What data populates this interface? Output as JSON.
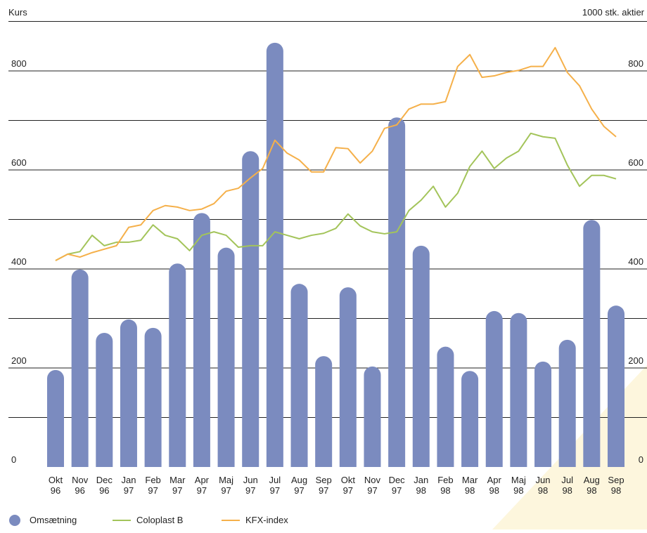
{
  "chart_data": {
    "type": "bar_line",
    "y_label": "Kurs",
    "y2_label": "1000 stk. aktier",
    "categories": [
      [
        "Okt",
        "96"
      ],
      [
        "Nov",
        "96"
      ],
      [
        "Dec",
        "96"
      ],
      [
        "Jan",
        "97"
      ],
      [
        "Feb",
        "97"
      ],
      [
        "Mar",
        "97"
      ],
      [
        "Apr",
        "97"
      ],
      [
        "Maj",
        "97"
      ],
      [
        "Jun",
        "97"
      ],
      [
        "Jul",
        "97"
      ],
      [
        "Aug",
        "97"
      ],
      [
        "Sep",
        "97"
      ],
      [
        "Okt",
        "97"
      ],
      [
        "Nov",
        "97"
      ],
      [
        "Dec",
        "97"
      ],
      [
        "Jan",
        "98"
      ],
      [
        "Feb",
        "98"
      ],
      [
        "Mar",
        "98"
      ],
      [
        "Apr",
        "98"
      ],
      [
        "Maj",
        "98"
      ],
      [
        "Jun",
        "98"
      ],
      [
        "Jul",
        "98"
      ],
      [
        "Aug",
        "98"
      ],
      [
        "Sep",
        "98"
      ]
    ],
    "ylim": [
      0,
      900
    ],
    "yticks": [
      0,
      200,
      400,
      600,
      800
    ],
    "y2lim": [
      0,
      900
    ],
    "y2ticks": [
      0,
      200,
      400,
      600,
      800
    ],
    "grid_lines": [
      100,
      200,
      300,
      400,
      500,
      600,
      700,
      800,
      900
    ],
    "bars": {
      "name": "Omsætning",
      "color": "#7b8bbf",
      "axis": "y2",
      "values": [
        196,
        399,
        271,
        298,
        281,
        411,
        513,
        443,
        638,
        857,
        370,
        224,
        363,
        203,
        706,
        447,
        243,
        194,
        315,
        311,
        213,
        257,
        499,
        326
      ]
    },
    "x": [
      0,
      0.5,
      1,
      1.5,
      2,
      2.5,
      3,
      3.5,
      4,
      4.5,
      5,
      5.5,
      6,
      6.5,
      7,
      7.5,
      8,
      8.5,
      9,
      9.5,
      10,
      10.5,
      11,
      11.5,
      12,
      12.5,
      13,
      13.5,
      14,
      14.5,
      15,
      15.5,
      16,
      16.5,
      17,
      17.5,
      18,
      18.5,
      19,
      19.5,
      20,
      20.5,
      21,
      21.5,
      22,
      22.5,
      23
    ],
    "series": [
      {
        "name": "Coloplast B",
        "color": "#a3c45a",
        "values": [
          417,
          430,
          435,
          468,
          447,
          454,
          454,
          458,
          489,
          468,
          461,
          437,
          468,
          475,
          468,
          444,
          447,
          447,
          475,
          468,
          461,
          468,
          472,
          482,
          511,
          487,
          475,
          471,
          475,
          518,
          539,
          567,
          525,
          553,
          607,
          638,
          603,
          624,
          638,
          674,
          667,
          664,
          610,
          567,
          589,
          589,
          582
        ]
      },
      {
        "name": "KFX-index",
        "color": "#f5b04a",
        "values": [
          417,
          430,
          424,
          433,
          440,
          447,
          484,
          489,
          518,
          528,
          525,
          518,
          521,
          532,
          557,
          563,
          584,
          603,
          660,
          634,
          620,
          596,
          596,
          645,
          643,
          614,
          638,
          684,
          691,
          723,
          733,
          733,
          738,
          809,
          833,
          787,
          790,
          797,
          801,
          809,
          809,
          847,
          797,
          770,
          723,
          688,
          667
        ]
      }
    ]
  }
}
